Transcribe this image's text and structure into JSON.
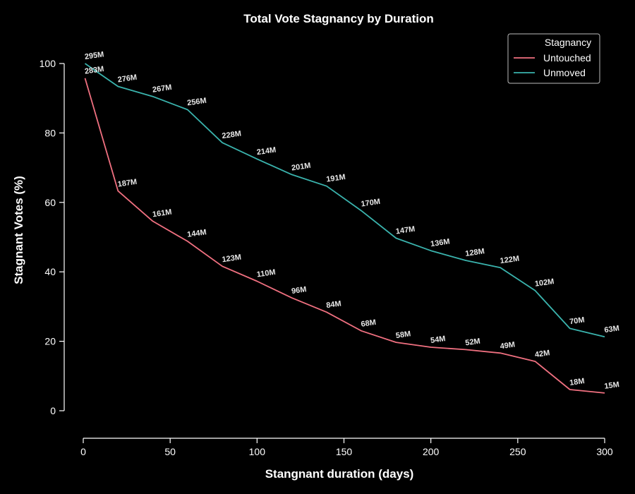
{
  "chart_data": {
    "type": "line",
    "title": "Total Vote Stagnancy by Duration",
    "xlabel": "Stangnant duration (days)",
    "ylabel": "Stagnant Votes (%)",
    "xlim": [
      0,
      300
    ],
    "ylim": [
      -7,
      105
    ],
    "xticks": [
      0,
      50,
      100,
      150,
      200,
      250,
      300
    ],
    "yticks": [
      0,
      20,
      40,
      60,
      80,
      100
    ],
    "grid": false,
    "legend": {
      "title": "Stagnancy",
      "placement": "top-right"
    },
    "x": [
      1,
      20,
      40,
      60,
      80,
      100,
      120,
      140,
      160,
      180,
      200,
      220,
      240,
      260,
      280,
      300
    ],
    "series": [
      {
        "name": "Untouched",
        "color": "#f07080",
        "values": [
          95.8,
          63.3,
          54.6,
          48.8,
          41.6,
          37.3,
          32.5,
          28.4,
          23.0,
          19.7,
          18.3,
          17.6,
          16.6,
          14.2,
          6.1,
          5.1
        ],
        "labels": [
          "283M",
          "187M",
          "161M",
          "144M",
          "123M",
          "110M",
          "96M",
          "84M",
          "68M",
          "58M",
          "54M",
          "52M",
          "49M",
          "42M",
          "18M",
          "15M"
        ]
      },
      {
        "name": "Unmoved",
        "color": "#3ab3ad",
        "values": [
          100.0,
          93.4,
          90.5,
          86.7,
          77.2,
          72.5,
          68.0,
          64.7,
          57.6,
          49.7,
          46.1,
          43.3,
          41.2,
          34.6,
          23.7,
          21.3
        ],
        "labels": [
          "295M",
          "276M",
          "267M",
          "256M",
          "228M",
          "214M",
          "201M",
          "191M",
          "170M",
          "147M",
          "136M",
          "128M",
          "122M",
          "102M",
          "70M",
          "63M"
        ]
      }
    ]
  }
}
